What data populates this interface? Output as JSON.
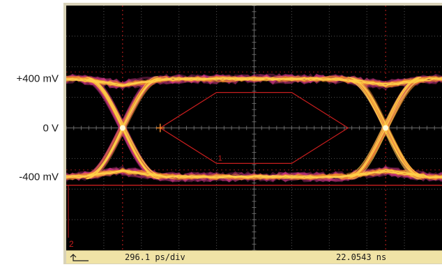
{
  "y_axis_labels": [
    {
      "text": "+400 mV",
      "value_mV": 400
    },
    {
      "text": "0 V",
      "value_mV": 0
    },
    {
      "text": "-400 mV",
      "value_mV": -400
    }
  ],
  "status_bar": {
    "time_per_div": "296.1 ps/div",
    "time_position": "22.0543 ns"
  },
  "mask_label": "1",
  "channel_label": "2",
  "colors": {
    "screen_bg": "#000000",
    "grid": "#6a6a6a",
    "mask": "#c81e1e",
    "trace_hot": "#ffd24a",
    "trace_mid": "#f08a2a",
    "trace_cool": "#d43a8a",
    "status_bg": "#f0e3a6"
  },
  "chart_data": {
    "type": "scatter",
    "subtype": "eye-diagram",
    "ylabel": "",
    "xlabel": "",
    "y_ticks_mV": [
      400,
      0,
      -400
    ],
    "ylim_mV": [
      -1000,
      1000
    ],
    "x_divisions": 10,
    "y_divisions": 8,
    "time_per_div_ps": 296.1,
    "eye_levels_mV": {
      "high": 400,
      "low": -400
    },
    "crossing_points": [
      {
        "x_div": 1.5,
        "y_mV": 0
      },
      {
        "x_div": 8.5,
        "y_mV": 0
      }
    ],
    "mask_polygon": [
      {
        "x_div": 2.5,
        "y_mV": 0
      },
      {
        "x_div": 4.0,
        "y_mV": 290
      },
      {
        "x_div": 6.0,
        "y_mV": 290
      },
      {
        "x_div": 7.5,
        "y_mV": 0
      },
      {
        "x_div": 6.0,
        "y_mV": -290
      },
      {
        "x_div": 4.0,
        "y_mV": -290
      }
    ],
    "grid": true,
    "legend": "none"
  }
}
